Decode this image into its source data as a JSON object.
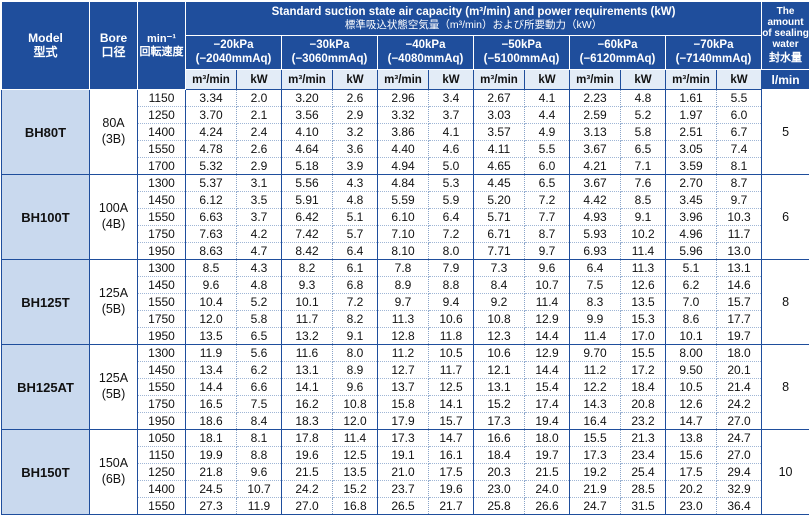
{
  "header": {
    "model_en": "Model",
    "model_jp": "型式",
    "bore_en": "Bore",
    "bore_jp": "口径",
    "speed_en": "min⁻¹",
    "speed_jp": "回転速度",
    "capacity_en": "Standard suction state air capacity (m³/min) and power requirements (kW)",
    "capacity_jp": "標準吸込状態空気量（m³/min）および所要動力（kW）",
    "sealing_en": "The amount of sealing water",
    "sealing_jp": "封水量",
    "pressures": [
      {
        "kpa": "−20kPa",
        "mmaq": "(−2040mmAq)"
      },
      {
        "kpa": "−30kPa",
        "mmaq": "(−3060mmAq)"
      },
      {
        "kpa": "−40kPa",
        "mmaq": "(−4080mmAq)"
      },
      {
        "kpa": "−50kPa",
        "mmaq": "(−5100mmAq)"
      },
      {
        "kpa": "−60kPa",
        "mmaq": "(−6120mmAq)"
      },
      {
        "kpa": "−70kPa",
        "mmaq": "(−7140mmAq)"
      }
    ],
    "col_capacity": "m³/min",
    "col_power": "kW",
    "col_water_unit": "l/min"
  },
  "models": [
    {
      "name": "BH80T",
      "bore": "80A",
      "bore_inch": "(3B)",
      "water": "5",
      "rows": [
        {
          "speed": "1150",
          "vals": [
            "3.34",
            "2.0",
            "3.20",
            "2.6",
            "2.96",
            "3.4",
            "2.67",
            "4.1",
            "2.23",
            "4.8",
            "1.61",
            "5.5"
          ]
        },
        {
          "speed": "1250",
          "vals": [
            "3.70",
            "2.1",
            "3.56",
            "2.9",
            "3.32",
            "3.7",
            "3.03",
            "4.4",
            "2.59",
            "5.2",
            "1.97",
            "6.0"
          ]
        },
        {
          "speed": "1400",
          "vals": [
            "4.24",
            "2.4",
            "4.10",
            "3.2",
            "3.86",
            "4.1",
            "3.57",
            "4.9",
            "3.13",
            "5.8",
            "2.51",
            "6.7"
          ]
        },
        {
          "speed": "1550",
          "vals": [
            "4.78",
            "2.6",
            "4.64",
            "3.6",
            "4.40",
            "4.6",
            "4.11",
            "5.5",
            "3.67",
            "6.5",
            "3.05",
            "7.4"
          ]
        },
        {
          "speed": "1700",
          "vals": [
            "5.32",
            "2.9",
            "5.18",
            "3.9",
            "4.94",
            "5.0",
            "4.65",
            "6.0",
            "4.21",
            "7.1",
            "3.59",
            "8.1"
          ]
        }
      ]
    },
    {
      "name": "BH100T",
      "bore": "100A",
      "bore_inch": "(4B)",
      "water": "6",
      "rows": [
        {
          "speed": "1300",
          "vals": [
            "5.37",
            "3.1",
            "5.56",
            "4.3",
            "4.84",
            "5.3",
            "4.45",
            "6.5",
            "3.67",
            "7.6",
            "2.70",
            "8.7"
          ]
        },
        {
          "speed": "1450",
          "vals": [
            "6.12",
            "3.5",
            "5.91",
            "4.8",
            "5.59",
            "5.9",
            "5.20",
            "7.2",
            "4.42",
            "8.5",
            "3.45",
            "9.7"
          ]
        },
        {
          "speed": "1550",
          "vals": [
            "6.63",
            "3.7",
            "6.42",
            "5.1",
            "6.10",
            "6.4",
            "5.71",
            "7.7",
            "4.93",
            "9.1",
            "3.96",
            "10.3"
          ]
        },
        {
          "speed": "1750",
          "vals": [
            "7.63",
            "4.2",
            "7.42",
            "5.7",
            "7.10",
            "7.2",
            "6.71",
            "8.7",
            "5.93",
            "10.2",
            "4.96",
            "11.7"
          ]
        },
        {
          "speed": "1950",
          "vals": [
            "8.63",
            "4.7",
            "8.42",
            "6.4",
            "8.10",
            "8.0",
            "7.71",
            "9.7",
            "6.93",
            "11.4",
            "5.96",
            "13.0"
          ]
        }
      ]
    },
    {
      "name": "BH125T",
      "bore": "125A",
      "bore_inch": "(5B)",
      "water": "8",
      "rows": [
        {
          "speed": "1300",
          "vals": [
            "8.5",
            "4.3",
            "8.2",
            "6.1",
            "7.8",
            "7.9",
            "7.3",
            "9.6",
            "6.4",
            "11.3",
            "5.1",
            "13.1"
          ]
        },
        {
          "speed": "1450",
          "vals": [
            "9.6",
            "4.8",
            "9.3",
            "6.8",
            "8.9",
            "8.8",
            "8.4",
            "10.7",
            "7.5",
            "12.6",
            "6.2",
            "14.6"
          ]
        },
        {
          "speed": "1550",
          "vals": [
            "10.4",
            "5.2",
            "10.1",
            "7.2",
            "9.7",
            "9.4",
            "9.2",
            "11.4",
            "8.3",
            "13.5",
            "7.0",
            "15.7"
          ]
        },
        {
          "speed": "1750",
          "vals": [
            "12.0",
            "5.8",
            "11.7",
            "8.2",
            "11.3",
            "10.6",
            "10.8",
            "12.9",
            "9.9",
            "15.3",
            "8.6",
            "17.7"
          ]
        },
        {
          "speed": "1950",
          "vals": [
            "13.5",
            "6.5",
            "13.2",
            "9.1",
            "12.8",
            "11.8",
            "12.3",
            "14.4",
            "11.4",
            "17.0",
            "10.1",
            "19.7"
          ]
        }
      ]
    },
    {
      "name": "BH125AT",
      "bore": "125A",
      "bore_inch": "(5B)",
      "water": "8",
      "rows": [
        {
          "speed": "1300",
          "vals": [
            "11.9",
            "5.6",
            "11.6",
            "8.0",
            "11.2",
            "10.5",
            "10.6",
            "12.9",
            "9.70",
            "15.5",
            "8.00",
            "18.0"
          ]
        },
        {
          "speed": "1450",
          "vals": [
            "13.4",
            "6.2",
            "13.1",
            "8.9",
            "12.7",
            "11.7",
            "12.1",
            "14.4",
            "11.2",
            "17.2",
            "9.50",
            "20.1"
          ]
        },
        {
          "speed": "1550",
          "vals": [
            "14.4",
            "6.6",
            "14.1",
            "9.6",
            "13.7",
            "12.5",
            "13.1",
            "15.4",
            "12.2",
            "18.4",
            "10.5",
            "21.4"
          ]
        },
        {
          "speed": "1750",
          "vals": [
            "16.5",
            "7.5",
            "16.2",
            "10.8",
            "15.8",
            "14.1",
            "15.2",
            "17.4",
            "14.3",
            "20.8",
            "12.6",
            "24.2"
          ]
        },
        {
          "speed": "1950",
          "vals": [
            "18.6",
            "8.4",
            "18.3",
            "12.0",
            "17.9",
            "15.7",
            "17.3",
            "19.4",
            "16.4",
            "23.2",
            "14.7",
            "27.0"
          ]
        }
      ]
    },
    {
      "name": "BH150T",
      "bore": "150A",
      "bore_inch": "(6B)",
      "water": "10",
      "rows": [
        {
          "speed": "1050",
          "vals": [
            "18.1",
            "8.1",
            "17.8",
            "11.4",
            "17.3",
            "14.7",
            "16.6",
            "18.0",
            "15.5",
            "21.3",
            "13.8",
            "24.7"
          ]
        },
        {
          "speed": "1150",
          "vals": [
            "19.9",
            "8.8",
            "19.6",
            "12.5",
            "19.1",
            "16.1",
            "18.4",
            "19.7",
            "17.3",
            "23.4",
            "15.6",
            "27.0"
          ]
        },
        {
          "speed": "1250",
          "vals": [
            "21.8",
            "9.6",
            "21.5",
            "13.5",
            "21.0",
            "17.5",
            "20.3",
            "21.5",
            "19.2",
            "25.4",
            "17.5",
            "29.4"
          ]
        },
        {
          "speed": "1400",
          "vals": [
            "24.5",
            "10.7",
            "24.2",
            "15.2",
            "23.7",
            "19.6",
            "23.0",
            "24.0",
            "21.9",
            "28.5",
            "20.2",
            "32.9"
          ]
        },
        {
          "speed": "1550",
          "vals": [
            "27.3",
            "11.9",
            "27.0",
            "16.8",
            "26.5",
            "21.7",
            "25.8",
            "26.6",
            "24.7",
            "31.5",
            "23.0",
            "36.4"
          ]
        }
      ]
    }
  ]
}
